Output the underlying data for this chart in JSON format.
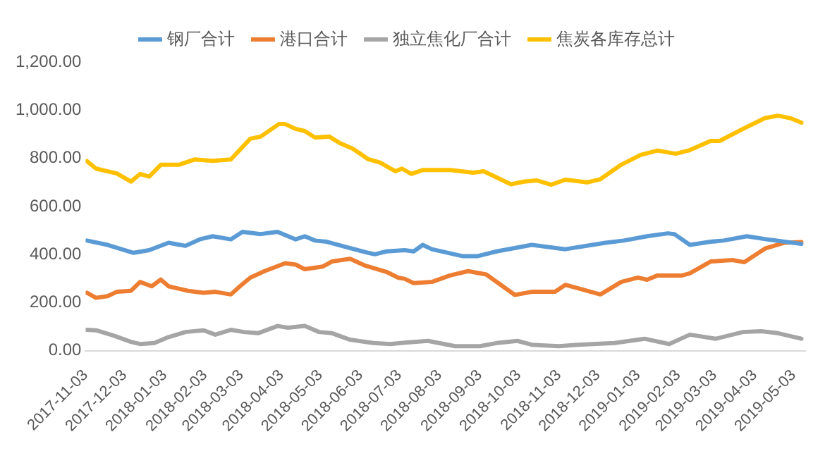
{
  "chart_data": {
    "type": "line",
    "legend": "top",
    "grid": false,
    "marker": "none",
    "line_style": "solid",
    "ylim": [
      0,
      1200
    ],
    "yticks": [
      {
        "value": 0,
        "label": "0.00"
      },
      {
        "value": 200,
        "label": "200.00"
      },
      {
        "value": 400,
        "label": "400.00"
      },
      {
        "value": 600,
        "label": "600.00"
      },
      {
        "value": 800,
        "label": "800.00"
      },
      {
        "value": 1000,
        "label": "1,000.00"
      },
      {
        "value": 1200,
        "label": "1,200.00"
      }
    ],
    "xlim": [
      "2017-11-03",
      "2019-05-12"
    ],
    "xticks": [
      "2017-11-03",
      "2017-12-03",
      "2018-01-03",
      "2018-02-03",
      "2018-03-03",
      "2018-04-03",
      "2018-05-03",
      "2018-06-03",
      "2018-07-03",
      "2018-08-03",
      "2018-09-03",
      "2018-10-03",
      "2018-11-03",
      "2018-12-03",
      "2019-01-03",
      "2019-02-03",
      "2019-03-03",
      "2019-04-03",
      "2019-05-03"
    ],
    "series": [
      {
        "name": "钢厂合计",
        "color": "#5b9bd5",
        "x": [
          "2017-11-04",
          "2017-11-20",
          "2017-12-10",
          "2017-12-22",
          "2018-01-06",
          "2018-01-19",
          "2018-01-30",
          "2018-02-09",
          "2018-02-23",
          "2018-03-04",
          "2018-03-18",
          "2018-03-31",
          "2018-04-14",
          "2018-04-21",
          "2018-04-29",
          "2018-05-08",
          "2018-05-23",
          "2018-06-09",
          "2018-06-14",
          "2018-06-23",
          "2018-07-07",
          "2018-07-14",
          "2018-07-21",
          "2018-07-28",
          "2018-08-21",
          "2018-09-01",
          "2018-09-16",
          "2018-10-13",
          "2018-11-08",
          "2018-12-09",
          "2018-12-23",
          "2019-01-10",
          "2019-01-26",
          "2019-01-31",
          "2019-02-12",
          "2019-02-28",
          "2019-03-10",
          "2019-03-28",
          "2019-04-15",
          "2019-05-09"
        ],
        "values": [
          458,
          440,
          407,
          418,
          449,
          436,
          463,
          476,
          463,
          494,
          485,
          494,
          463,
          476,
          458,
          453,
          431,
          407,
          401,
          413,
          418,
          413,
          440,
          422,
          393,
          393,
          413,
          440,
          422,
          449,
          458,
          476,
          488,
          485,
          440,
          453,
          458,
          476,
          461,
          444
        ]
      },
      {
        "name": "港口合计",
        "color": "#ed7d31",
        "x": [
          "2017-11-04",
          "2017-11-11",
          "2017-11-20",
          "2017-11-27",
          "2017-12-08",
          "2017-12-15",
          "2017-12-24",
          "2017-12-31",
          "2018-01-06",
          "2018-01-21",
          "2018-02-02",
          "2018-02-11",
          "2018-02-23",
          "2018-03-02",
          "2018-03-10",
          "2018-03-21",
          "2018-04-06",
          "2018-04-14",
          "2018-04-21",
          "2018-05-05",
          "2018-05-12",
          "2018-05-26",
          "2018-06-07",
          "2018-06-23",
          "2018-07-02",
          "2018-07-07",
          "2018-07-14",
          "2018-07-28",
          "2018-08-11",
          "2018-08-25",
          "2018-09-08",
          "2018-09-30",
          "2018-10-13",
          "2018-10-31",
          "2018-11-08",
          "2018-12-05",
          "2018-12-21",
          "2019-01-03",
          "2019-01-10",
          "2019-01-18",
          "2019-02-06",
          "2019-02-12",
          "2019-02-28",
          "2019-03-17",
          "2019-03-26",
          "2019-04-11",
          "2019-04-26",
          "2019-05-09"
        ],
        "values": [
          241,
          220,
          227,
          245,
          249,
          286,
          268,
          296,
          268,
          249,
          241,
          245,
          234,
          268,
          304,
          331,
          364,
          358,
          339,
          350,
          371,
          382,
          353,
          328,
          304,
          299,
          281,
          286,
          313,
          331,
          317,
          232,
          245,
          245,
          274,
          234,
          286,
          304,
          295,
          313,
          313,
          322,
          371,
          377,
          368,
          425,
          449,
          452
        ]
      },
      {
        "name": "独立焦化厂合计",
        "color": "#a5a5a5",
        "x": [
          "2017-11-04",
          "2017-11-11",
          "2017-11-24",
          "2017-12-08",
          "2017-12-15",
          "2017-12-26",
          "2018-01-05",
          "2018-01-19",
          "2018-02-02",
          "2018-02-11",
          "2018-02-23",
          "2018-03-05",
          "2018-03-16",
          "2018-03-31",
          "2018-04-08",
          "2018-04-21",
          "2018-05-02",
          "2018-05-12",
          "2018-05-26",
          "2018-06-13",
          "2018-06-26",
          "2018-07-07",
          "2018-07-25",
          "2018-08-15",
          "2018-09-03",
          "2018-09-16",
          "2018-10-02",
          "2018-10-13",
          "2018-11-03",
          "2018-11-18",
          "2018-12-16",
          "2019-01-08",
          "2019-01-27",
          "2019-02-12",
          "2019-03-04",
          "2019-03-25",
          "2019-04-08",
          "2019-04-21",
          "2019-05-09"
        ],
        "values": [
          87,
          85,
          64,
          37,
          28,
          32,
          55,
          78,
          85,
          67,
          87,
          78,
          73,
          103,
          96,
          103,
          78,
          73,
          46,
          32,
          28,
          34,
          41,
          19,
          19,
          32,
          41,
          25,
          19,
          25,
          32,
          50,
          28,
          67,
          50,
          78,
          81,
          73,
          50
        ]
      },
      {
        "name": "焦炭各库存总计",
        "color": "#ffc000",
        "x": [
          "2017-11-04",
          "2017-11-11",
          "2017-11-27",
          "2017-12-08",
          "2017-12-15",
          "2017-12-22",
          "2017-12-31",
          "2018-01-14",
          "2018-01-26",
          "2018-02-09",
          "2018-02-23",
          "2018-03-10",
          "2018-03-18",
          "2018-04-01",
          "2018-04-06",
          "2018-04-14",
          "2018-04-21",
          "2018-04-29",
          "2018-05-10",
          "2018-05-18",
          "2018-05-28",
          "2018-06-09",
          "2018-06-18",
          "2018-06-30",
          "2018-07-05",
          "2018-07-12",
          "2018-07-21",
          "2018-08-11",
          "2018-08-29",
          "2018-09-06",
          "2018-09-27",
          "2018-10-07",
          "2018-10-17",
          "2018-10-28",
          "2018-11-08",
          "2018-11-25",
          "2018-12-05",
          "2018-12-21",
          "2019-01-05",
          "2019-01-18",
          "2019-02-01",
          "2019-02-11",
          "2019-02-28",
          "2019-03-07",
          "2019-03-25",
          "2019-04-11",
          "2019-04-21",
          "2019-05-01",
          "2019-05-09"
        ],
        "values": [
          788,
          757,
          737,
          703,
          735,
          724,
          773,
          773,
          795,
          789,
          795,
          881,
          890,
          942,
          942,
          922,
          913,
          886,
          890,
          863,
          840,
          796,
          782,
          746,
          757,
          735,
          751,
          751,
          740,
          746,
          692,
          703,
          708,
          690,
          711,
          700,
          713,
          773,
          814,
          832,
          819,
          832,
          872,
          872,
          922,
          967,
          977,
          966,
          948
        ]
      }
    ]
  }
}
